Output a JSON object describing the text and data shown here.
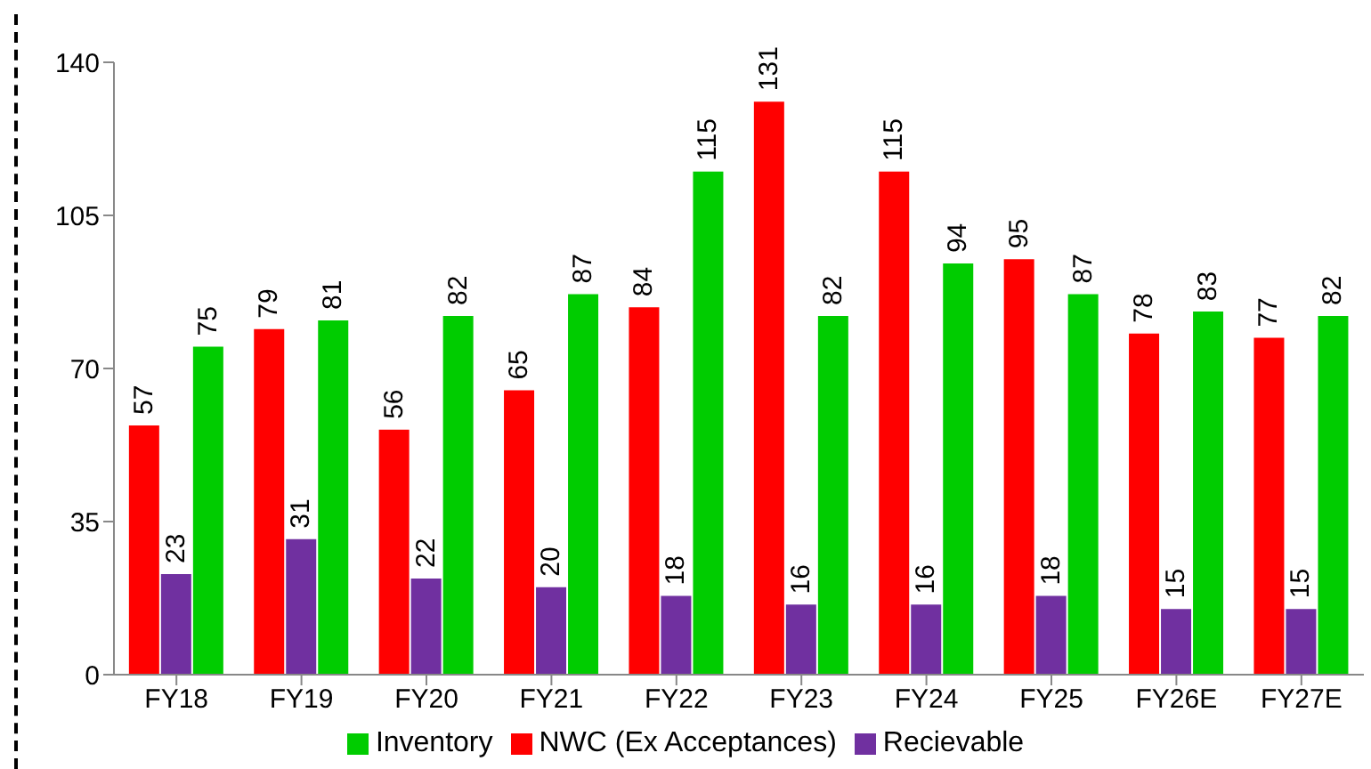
{
  "chart_data": {
    "type": "bar",
    "categories": [
      "FY18",
      "FY19",
      "FY20",
      "FY21",
      "FY22",
      "FY23",
      "FY24",
      "FY25",
      "FY26E",
      "FY27E"
    ],
    "series": [
      {
        "name": "NWC (Ex Acceptances)",
        "color": "#ff0000",
        "values": [
          57,
          79,
          56,
          65,
          84,
          131,
          115,
          95,
          78,
          77
        ]
      },
      {
        "name": "Recievable",
        "color": "#7030a0",
        "values": [
          23,
          31,
          22,
          20,
          18,
          16,
          16,
          18,
          15,
          15
        ]
      },
      {
        "name": "Inventory",
        "color": "#00cc00",
        "values": [
          75,
          81,
          82,
          87,
          115,
          82,
          94,
          87,
          83,
          82
        ]
      }
    ],
    "ylim": [
      0,
      140
    ],
    "yticks": [
      0,
      35,
      70,
      105,
      140
    ],
    "grid": false,
    "legend": "bottom",
    "data_labels": true
  }
}
